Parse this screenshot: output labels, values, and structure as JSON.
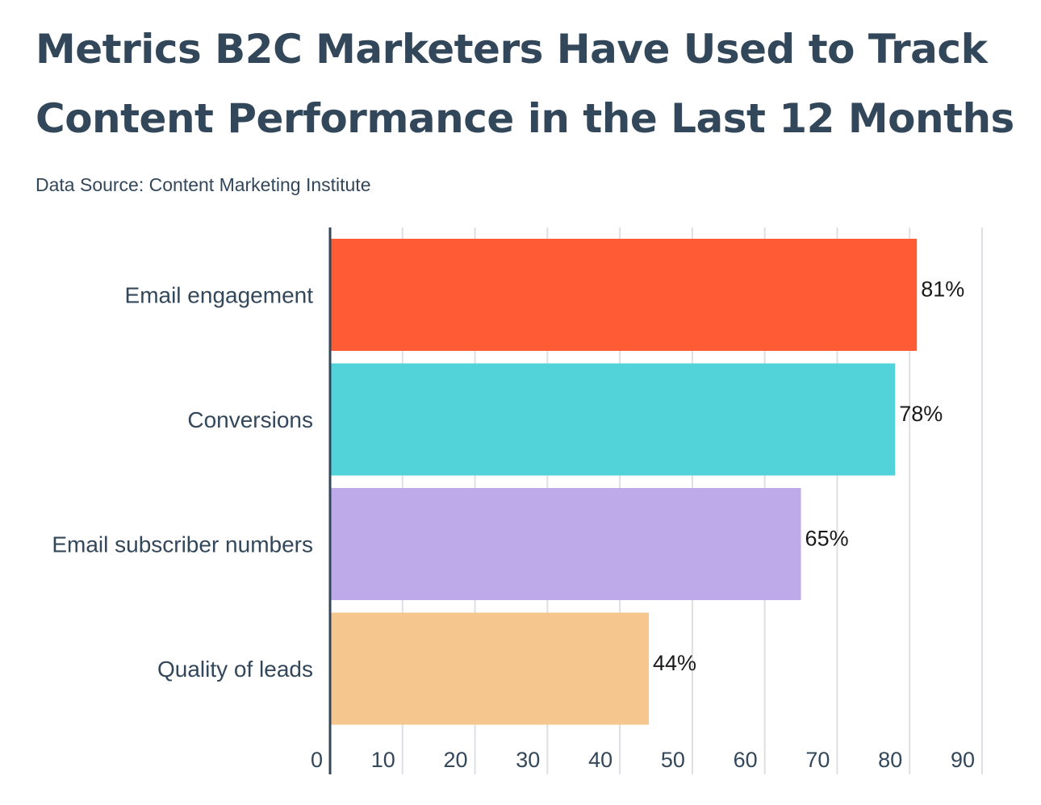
{
  "title": "Metrics B2C Marketers Have Used to Track Content Performance in the Last 12 Months",
  "source": "Data Source: Content Marketing Institute",
  "chart_data": {
    "type": "bar",
    "orientation": "horizontal",
    "title": "Metrics B2C Marketers Have Used to Track Content Performance in the Last 12 Months",
    "subtitle": "Data Source: Content Marketing Institute",
    "xlabel": "",
    "ylabel": "",
    "categories": [
      "Email engagement",
      "Conversions",
      "Email subscriber numbers",
      "Quality of leads"
    ],
    "values": [
      81,
      78,
      65,
      44
    ],
    "value_labels": [
      "81%",
      "78%",
      "65%",
      "44%"
    ],
    "colors": [
      "#ff5c35",
      "#51d3d9",
      "#bea9e9",
      "#f5c78e"
    ],
    "xlim": [
      0,
      90
    ],
    "xticks": [
      0,
      10,
      20,
      30,
      40,
      50,
      60,
      70,
      80,
      90
    ],
    "grid": true,
    "legend": "none"
  }
}
